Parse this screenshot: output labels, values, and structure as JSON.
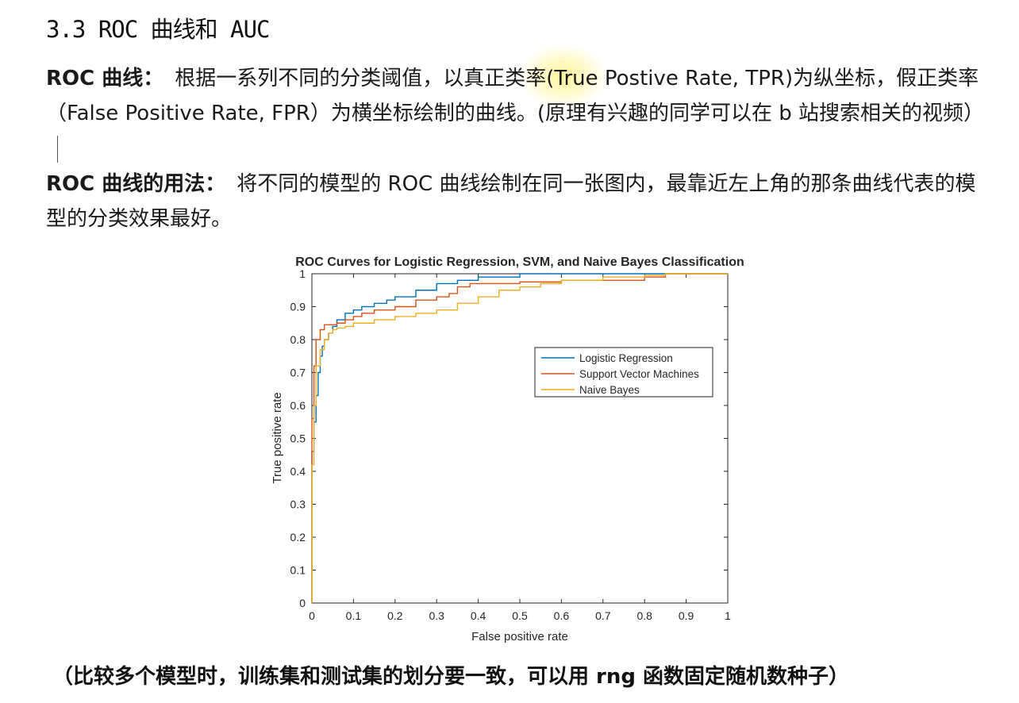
{
  "heading": "3.3 ROC 曲线和 AUC",
  "roc_def": {
    "label": "ROC 曲线：",
    "text": "根据一系列不同的分类阈值，以真正类率(True Postive Rate, TPR)为纵坐标，假正类率（False Positive Rate, FPR）为横坐标绘制的曲线。(原理有兴趣的同学可以在 b 站搜索相关的视频）"
  },
  "roc_usage": {
    "label": "ROC 曲线的用法：",
    "text": "将不同的模型的 ROC 曲线绘制在同一张图内，最靠近左上角的那条曲线代表的模型的分类效果最好。"
  },
  "footnote": "（比较多个模型时，训练集和测试集的划分要一致，可以用 rng 函数固定随机数种子）",
  "chart_data": {
    "type": "line",
    "title": "ROC Curves for Logistic Regression, SVM, and Naive Bayes Classification",
    "xlabel": "False positive rate",
    "ylabel": "True positive rate",
    "xlim": [
      0,
      1
    ],
    "ylim": [
      0,
      1
    ],
    "xticks": [
      "0",
      "0.1",
      "0.2",
      "0.3",
      "0.4",
      "0.5",
      "0.6",
      "0.7",
      "0.8",
      "0.9",
      "1"
    ],
    "yticks": [
      "0",
      "0.1",
      "0.2",
      "0.3",
      "0.4",
      "0.5",
      "0.6",
      "0.7",
      "0.8",
      "0.9",
      "1"
    ],
    "grid": false,
    "legend_position": "right-middle",
    "series": [
      {
        "name": "Logistic Regression",
        "color": "#0072BD",
        "points": [
          [
            0,
            0
          ],
          [
            0,
            0.46
          ],
          [
            0.005,
            0.55
          ],
          [
            0.01,
            0.63
          ],
          [
            0.015,
            0.7
          ],
          [
            0.02,
            0.75
          ],
          [
            0.025,
            0.78
          ],
          [
            0.03,
            0.8
          ],
          [
            0.04,
            0.82
          ],
          [
            0.05,
            0.84
          ],
          [
            0.06,
            0.86
          ],
          [
            0.08,
            0.88
          ],
          [
            0.1,
            0.89
          ],
          [
            0.12,
            0.9
          ],
          [
            0.15,
            0.91
          ],
          [
            0.18,
            0.92
          ],
          [
            0.2,
            0.93
          ],
          [
            0.25,
            0.95
          ],
          [
            0.3,
            0.97
          ],
          [
            0.35,
            0.98
          ],
          [
            0.4,
            0.99
          ],
          [
            0.45,
            0.99
          ],
          [
            0.5,
            1.0
          ],
          [
            0.6,
            1.0
          ],
          [
            0.8,
            1.0
          ],
          [
            1.0,
            1.0
          ]
        ]
      },
      {
        "name": "Support Vector Machines",
        "color": "#D95319",
        "points": [
          [
            0,
            0
          ],
          [
            0,
            0.56
          ],
          [
            0.005,
            0.72
          ],
          [
            0.01,
            0.8
          ],
          [
            0.02,
            0.83
          ],
          [
            0.03,
            0.845
          ],
          [
            0.06,
            0.85
          ],
          [
            0.08,
            0.86
          ],
          [
            0.1,
            0.87
          ],
          [
            0.12,
            0.88
          ],
          [
            0.15,
            0.89
          ],
          [
            0.2,
            0.9
          ],
          [
            0.25,
            0.92
          ],
          [
            0.3,
            0.93
          ],
          [
            0.33,
            0.94
          ],
          [
            0.35,
            0.96
          ],
          [
            0.38,
            0.97
          ],
          [
            0.4,
            0.97
          ],
          [
            0.45,
            0.97
          ],
          [
            0.5,
            0.975
          ],
          [
            0.6,
            0.98
          ],
          [
            0.7,
            0.98
          ],
          [
            0.8,
            0.99
          ],
          [
            0.85,
            1.0
          ],
          [
            1.0,
            1.0
          ]
        ]
      },
      {
        "name": "Naive Bayes",
        "color": "#EDB120",
        "points": [
          [
            0,
            0
          ],
          [
            0,
            0.42
          ],
          [
            0.005,
            0.6
          ],
          [
            0.01,
            0.72
          ],
          [
            0.02,
            0.77
          ],
          [
            0.03,
            0.8
          ],
          [
            0.04,
            0.82
          ],
          [
            0.05,
            0.83
          ],
          [
            0.06,
            0.835
          ],
          [
            0.08,
            0.84
          ],
          [
            0.1,
            0.85
          ],
          [
            0.15,
            0.86
          ],
          [
            0.2,
            0.87
          ],
          [
            0.25,
            0.88
          ],
          [
            0.3,
            0.89
          ],
          [
            0.35,
            0.91
          ],
          [
            0.4,
            0.93
          ],
          [
            0.45,
            0.95
          ],
          [
            0.5,
            0.96
          ],
          [
            0.55,
            0.97
          ],
          [
            0.6,
            0.98
          ],
          [
            0.7,
            0.99
          ],
          [
            0.8,
            0.995
          ],
          [
            0.85,
            1.0
          ],
          [
            1.0,
            1.0
          ]
        ]
      }
    ]
  }
}
